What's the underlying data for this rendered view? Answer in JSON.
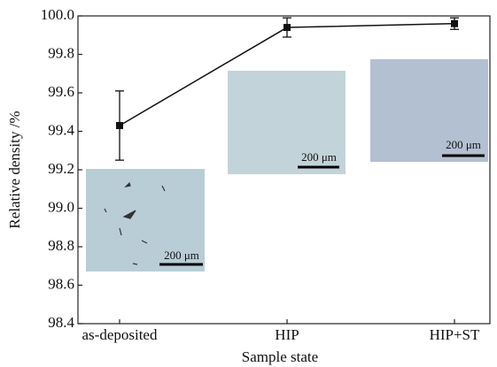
{
  "chart_data": {
    "type": "line",
    "x_label": "Sample state",
    "y_label": "Relative density /%",
    "categories": [
      "as-deposited",
      "HIP",
      "HIP+ST"
    ],
    "values": [
      99.43,
      99.94,
      99.96
    ],
    "errors": [
      0.18,
      0.05,
      0.03
    ],
    "color": "#111111",
    "ylim": [
      98.4,
      100.0
    ],
    "yticks": [
      98.4,
      98.6,
      98.8,
      {
        "value": 99,
        "label": "99.0"
      },
      99.2,
      99.4,
      99.6,
      99.8,
      {
        "value": 100,
        "label": "100.0"
      }
    ],
    "insets": [
      {
        "scale_label": "200 μm"
      },
      {
        "scale_label": "200 μm"
      },
      {
        "scale_label": "200 μm"
      }
    ]
  }
}
